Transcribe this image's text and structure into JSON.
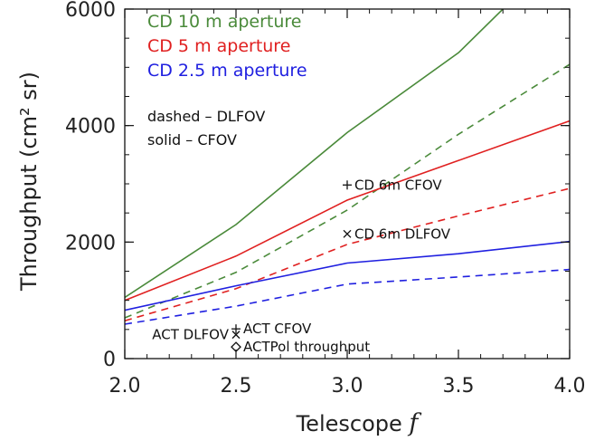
{
  "chart_data": {
    "type": "line",
    "xlabel": "Telescope",
    "xlabel_symbol": "f",
    "ylabel": "Throughput (cm² sr)",
    "xlim": [
      2.0,
      4.0
    ],
    "ylim": [
      0,
      6000
    ],
    "xticks": [
      2.0,
      2.5,
      3.0,
      3.5,
      4.0
    ],
    "xtick_labels": [
      "2.0",
      "2.5",
      "3.0",
      "3.5",
      "4.0"
    ],
    "yticks": [
      0,
      2000,
      4000,
      6000
    ],
    "ytick_labels": [
      "0",
      "2000",
      "4000",
      "6000"
    ],
    "grid": false,
    "legend": [
      {
        "label": "CD 10 m aperture",
        "color": "#4a8a3a"
      },
      {
        "label": "CD 5 m aperture",
        "color": "#e02020"
      },
      {
        "label": "CD 2.5 m aperture",
        "color": "#2020e0"
      }
    ],
    "notes": [
      "dashed – DLFOV",
      "solid – CFOV"
    ],
    "series": [
      {
        "aperture": "CD 10 m aperture",
        "fov": "CFOV",
        "style": "solid",
        "color": "#4a8a3a",
        "x": [
          2.0,
          2.5,
          3.0,
          3.5,
          3.7
        ],
        "y": [
          1050,
          2300,
          3880,
          5250,
          6000
        ]
      },
      {
        "aperture": "CD 10 m aperture",
        "fov": "DLFOV",
        "style": "dashed",
        "color": "#4a8a3a",
        "x": [
          2.0,
          2.5,
          3.0,
          3.5,
          4.0
        ],
        "y": [
          700,
          1480,
          2550,
          3850,
          5050
        ]
      },
      {
        "aperture": "CD 5 m aperture",
        "fov": "CFOV",
        "style": "solid",
        "color": "#e02020",
        "x": [
          2.0,
          2.5,
          3.0,
          3.5,
          4.0
        ],
        "y": [
          1000,
          1760,
          2720,
          3400,
          4080
        ]
      },
      {
        "aperture": "CD 5 m aperture",
        "fov": "DLFOV",
        "style": "dashed",
        "color": "#e02020",
        "x": [
          2.0,
          2.5,
          3.0,
          3.5,
          4.0
        ],
        "y": [
          650,
          1200,
          1960,
          2450,
          2920
        ]
      },
      {
        "aperture": "CD 2.5 m aperture",
        "fov": "CFOV",
        "style": "solid",
        "color": "#2020e0",
        "x": [
          2.0,
          2.5,
          3.0,
          3.5,
          4.0
        ],
        "y": [
          830,
          1250,
          1640,
          1800,
          2010
        ]
      },
      {
        "aperture": "CD 2.5 m aperture",
        "fov": "DLFOV",
        "style": "dashed",
        "color": "#2020e0",
        "x": [
          2.0,
          2.5,
          3.0,
          3.5,
          4.0
        ],
        "y": [
          590,
          900,
          1280,
          1400,
          1530
        ]
      }
    ],
    "annotations": [
      {
        "marker": "+",
        "x": 3.0,
        "y": 2980,
        "label": "CD 6m CFOV",
        "side": "right"
      },
      {
        "marker": "×",
        "x": 3.0,
        "y": 2140,
        "label": "CD 6m DLFOV",
        "side": "right"
      },
      {
        "marker": "+",
        "x": 2.5,
        "y": 510,
        "label": "ACT CFOV",
        "side": "right"
      },
      {
        "marker": "×",
        "x": 2.5,
        "y": 410,
        "label": "ACT DLFOV",
        "side": "left"
      },
      {
        "marker": "◇",
        "x": 2.5,
        "y": 200,
        "label": "ACTPol throughput",
        "side": "right"
      }
    ]
  }
}
